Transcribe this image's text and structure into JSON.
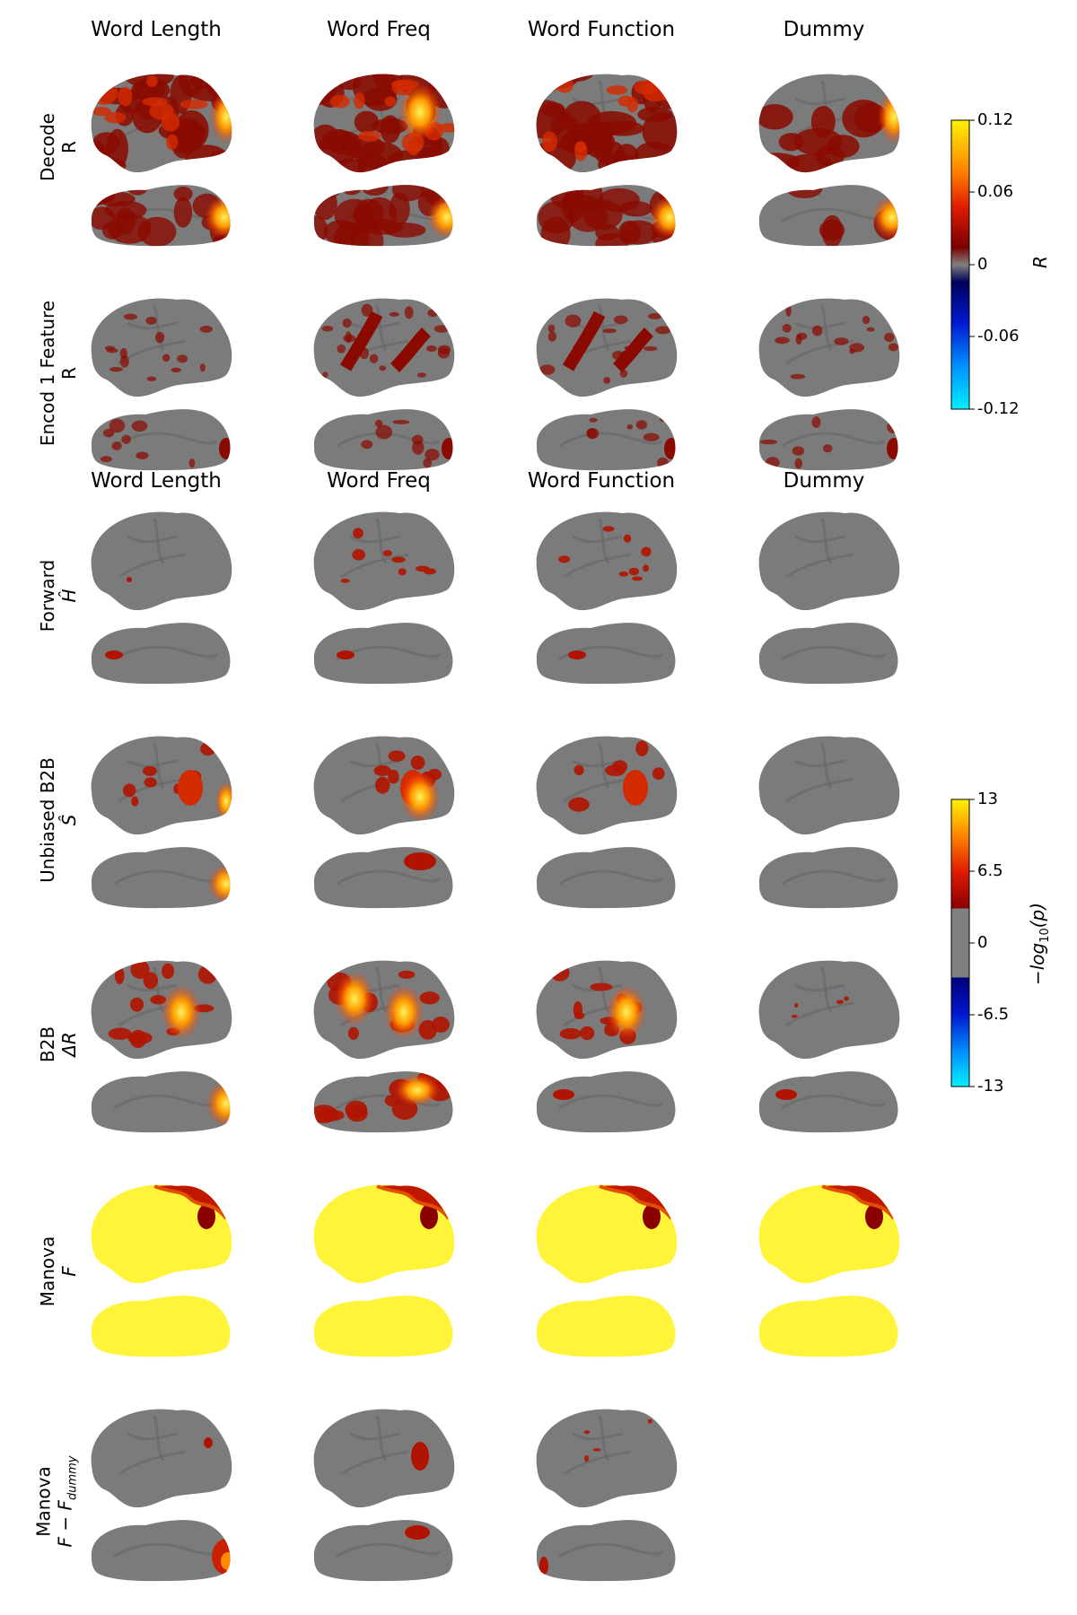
{
  "columns": [
    "Word Length",
    "Word Freq",
    "Word Function",
    "Dummy"
  ],
  "rows": [
    {
      "line1": "Decode",
      "line2": "R"
    },
    {
      "line1": "Encod 1 Feature",
      "line2": "R"
    },
    {
      "line1": "Forward",
      "line2": "Ĥ"
    },
    {
      "line1": "Unbiased B2B",
      "line2": "Ŝ"
    },
    {
      "line1": "B2B",
      "line2": "ΔR"
    },
    {
      "line1": "Manova",
      "line2": "F"
    },
    {
      "line1": "Manova",
      "line2": "F − F",
      "line2_sub": "dummy"
    }
  ],
  "colorbar_R": {
    "label": "R",
    "ticks": [
      "0.12",
      "0.06",
      "0",
      "-0.06",
      "-0.12"
    ]
  },
  "colorbar_p": {
    "label": "−log",
    "label_sub": "10",
    "label_suffix": "(p)",
    "ticks": [
      "13",
      "6.5",
      "0",
      "-6.5",
      "-13"
    ]
  }
}
